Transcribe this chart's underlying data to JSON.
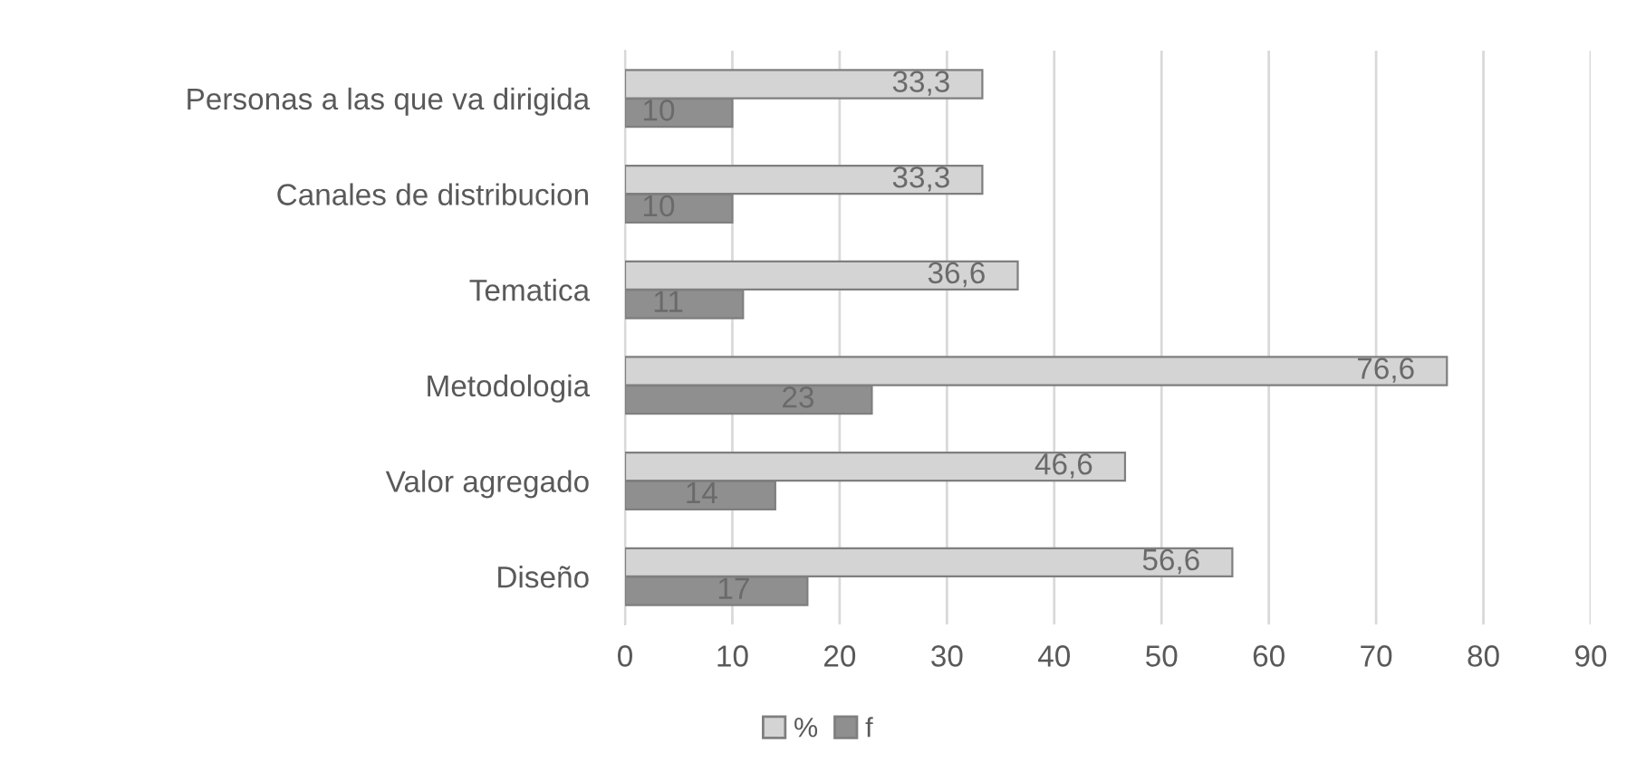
{
  "chart_data": {
    "type": "bar",
    "orientation": "horizontal",
    "categories": [
      "Personas a las que va dirigida",
      "Canales de distribucion",
      "Tematica",
      "Metodologia",
      "Valor agregado",
      "Diseño"
    ],
    "series": [
      {
        "name": "%",
        "color": "#d4d4d4",
        "values": [
          33.3,
          33.3,
          36.6,
          76.6,
          46.6,
          56.6
        ],
        "value_labels": [
          "33,3",
          "33,3",
          "36,6",
          "76,6",
          "46,6",
          "56,6"
        ]
      },
      {
        "name": "f",
        "color": "#8f8f8f",
        "values": [
          10,
          10,
          11,
          23,
          14,
          17
        ],
        "value_labels": [
          "10",
          "10",
          "11",
          "23",
          "14",
          "17"
        ]
      }
    ],
    "xlim": [
      0,
      90
    ],
    "xticks": [
      0,
      10,
      20,
      30,
      40,
      50,
      60,
      70,
      80,
      90
    ],
    "grid": "x",
    "legend": "bottom"
  }
}
